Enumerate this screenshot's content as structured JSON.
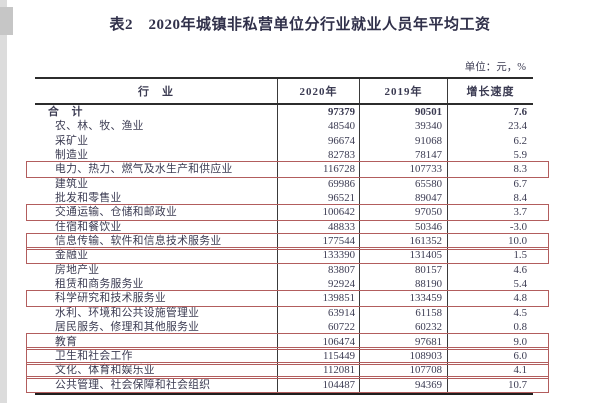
{
  "page": {
    "title": "表2　2020年城镇非私营单位分行业就业人员年平均工资",
    "unit_note": "单位：元，%"
  },
  "colors": {
    "annotation_box": "#b25d5d",
    "text": "#3b3b52",
    "rule": "#2c2c2c"
  },
  "table": {
    "headers": {
      "industry": "行　业",
      "y2020": "2020年",
      "y2019": "2019年",
      "growth": "增长速度"
    },
    "rows": [
      {
        "industry": "合　计",
        "y2020": "97379",
        "y2019": "90501",
        "growth": "7.6",
        "total": true,
        "boxed": false
      },
      {
        "industry": "农、林、牧、渔业",
        "y2020": "48540",
        "y2019": "39340",
        "growth": "23.4",
        "total": false,
        "boxed": false
      },
      {
        "industry": "采矿业",
        "y2020": "96674",
        "y2019": "91068",
        "growth": "6.2",
        "total": false,
        "boxed": false
      },
      {
        "industry": "制造业",
        "y2020": "82783",
        "y2019": "78147",
        "growth": "5.9",
        "total": false,
        "boxed": false
      },
      {
        "industry": "电力、热力、燃气及水生产和供应业",
        "y2020": "116728",
        "y2019": "107733",
        "growth": "8.3",
        "total": false,
        "boxed": true
      },
      {
        "industry": "建筑业",
        "y2020": "69986",
        "y2019": "65580",
        "growth": "6.7",
        "total": false,
        "boxed": false
      },
      {
        "industry": "批发和零售业",
        "y2020": "96521",
        "y2019": "89047",
        "growth": "8.4",
        "total": false,
        "boxed": false
      },
      {
        "industry": "交通运输、仓储和邮政业",
        "y2020": "100642",
        "y2019": "97050",
        "growth": "3.7",
        "total": false,
        "boxed": true
      },
      {
        "industry": "住宿和餐饮业",
        "y2020": "48833",
        "y2019": "50346",
        "growth": "-3.0",
        "total": false,
        "boxed": false
      },
      {
        "industry": "信息传输、软件和信息技术服务业",
        "y2020": "177544",
        "y2019": "161352",
        "growth": "10.0",
        "total": false,
        "boxed": true
      },
      {
        "industry": "金融业",
        "y2020": "133390",
        "y2019": "131405",
        "growth": "1.5",
        "total": false,
        "boxed": true
      },
      {
        "industry": "房地产业",
        "y2020": "83807",
        "y2019": "80157",
        "growth": "4.6",
        "total": false,
        "boxed": false
      },
      {
        "industry": "租赁和商务服务业",
        "y2020": "92924",
        "y2019": "88190",
        "growth": "5.4",
        "total": false,
        "boxed": false
      },
      {
        "industry": "科学研究和技术服务业",
        "y2020": "139851",
        "y2019": "133459",
        "growth": "4.8",
        "total": false,
        "boxed": true
      },
      {
        "industry": "水利、环境和公共设施管理业",
        "y2020": "63914",
        "y2019": "61158",
        "growth": "4.5",
        "total": false,
        "boxed": false
      },
      {
        "industry": "居民服务、修理和其他服务业",
        "y2020": "60722",
        "y2019": "60232",
        "growth": "0.8",
        "total": false,
        "boxed": false
      },
      {
        "industry": "教育",
        "y2020": "106474",
        "y2019": "97681",
        "growth": "9.0",
        "total": false,
        "boxed": true
      },
      {
        "industry": "卫生和社会工作",
        "y2020": "115449",
        "y2019": "108903",
        "growth": "6.0",
        "total": false,
        "boxed": true
      },
      {
        "industry": "文化、体育和娱乐业",
        "y2020": "112081",
        "y2019": "107708",
        "growth": "4.1",
        "total": false,
        "boxed": true
      },
      {
        "industry": "公共管理、社会保障和社会组织",
        "y2020": "104487",
        "y2019": "94369",
        "growth": "10.7",
        "total": false,
        "boxed": true
      }
    ]
  }
}
